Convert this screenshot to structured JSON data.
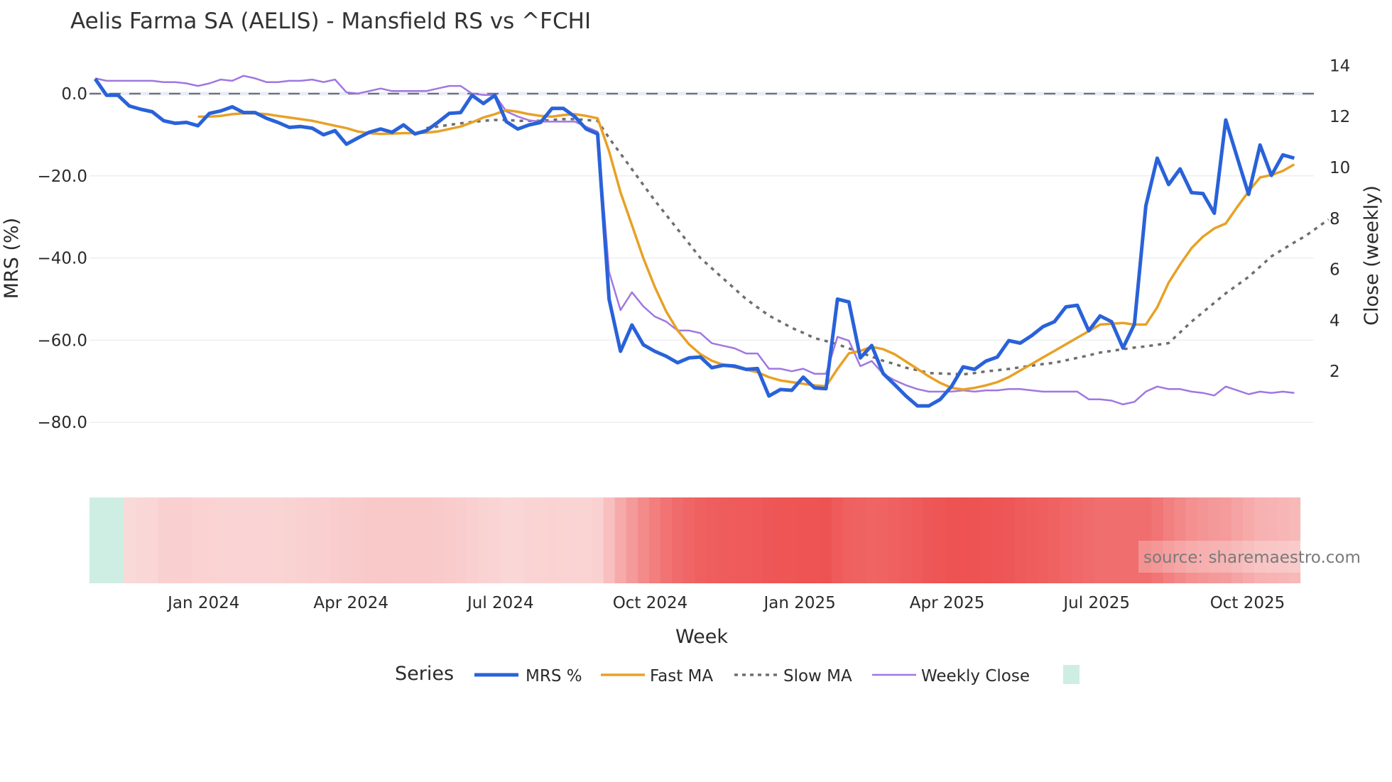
{
  "title": "Aelis Farma SA (AELIS) - Mansfield RS vs ^FCHI",
  "watermark": "source: sharemaestro.com",
  "colors": {
    "mrs": "#2962d9",
    "fast_ma": "#e8a125",
    "slow_ma": "#6e6e6e",
    "weekly_close": "#a077e0",
    "zero_line": "#707070",
    "heat_positive": "#cfeee3",
    "heat_negative_light": "#fbe3e3",
    "heat_negative_dark": "#ee5252"
  },
  "legend": {
    "title": "Series",
    "items": [
      {
        "label": "MRS %",
        "key": "mrs",
        "style": "solid-thick"
      },
      {
        "label": "Fast MA",
        "key": "fast_ma",
        "style": "solid"
      },
      {
        "label": "Slow MA",
        "key": "slow_ma",
        "style": "dotted"
      },
      {
        "label": "Weekly Close",
        "key": "weekly_close",
        "style": "solid-thin"
      },
      {
        "label": "",
        "key": "heat_positive",
        "style": "swatch"
      }
    ]
  },
  "chart_data": {
    "type": "line",
    "title": "Aelis Farma SA (AELIS) - Mansfield RS vs ^FCHI",
    "xlabel": "Week",
    "ylabel": "MRS (%)",
    "y2label": "Close (weekly)",
    "ylim": [
      -90,
      8
    ],
    "y2lim": [
      0,
      14.6
    ],
    "yticks": [
      0,
      -20,
      -40,
      -60,
      -80
    ],
    "ytick_labels": [
      "0.0",
      "−20.0",
      "−40.0",
      "−60.0",
      "−80.0"
    ],
    "y2ticks": [
      14,
      12,
      10,
      8,
      6,
      4,
      2
    ],
    "xtick_labels": [
      "Jan 2024",
      "Apr 2024",
      "Jul 2024",
      "Oct 2024",
      "Jan 2025",
      "Apr 2025",
      "Jul 2025",
      "Oct 2025"
    ],
    "xtick_week_index": [
      9.5,
      22.4,
      35.5,
      48.6,
      61.7,
      74.6,
      87.7,
      100.9
    ],
    "first_week": "2023-10-23",
    "weeks": 106,
    "grid": true,
    "legend_position": "bottom",
    "reference_line": {
      "y": 0,
      "style": "dashed"
    },
    "series": [
      {
        "name": "MRS %",
        "axis": "left",
        "start_index": 0,
        "values": [
          3.6,
          -0.4,
          -0.4,
          -3,
          -3.8,
          -4.4,
          -6.6,
          -7.2,
          -7,
          -7.8,
          -4.8,
          -4.2,
          -3.2,
          -4.6,
          -4.6,
          -6,
          -7,
          -8.2,
          -8,
          -8.4,
          -10,
          -9,
          -12.3,
          -10.8,
          -9.4,
          -8.6,
          -9.4,
          -7.6,
          -9.8,
          -9,
          -7,
          -4.8,
          -4.6,
          -0.4,
          -2.4,
          -0.4,
          -6.8,
          -8.6,
          -7.6,
          -7,
          -3.6,
          -3.6,
          -5.6,
          -8.6,
          -9.8,
          -50,
          -62.7,
          -56.3,
          -61.1,
          -62.7,
          -63.9,
          -65.5,
          -64.3,
          -64.1,
          -66.7,
          -66.1,
          -66.3,
          -67.1,
          -66.9,
          -73.6,
          -72,
          -72.2,
          -69,
          -71.6,
          -71.8,
          -50,
          -50.7,
          -64.3,
          -61.3,
          -68.1,
          -70.8,
          -73.6,
          -76,
          -76,
          -74.4,
          -71.2,
          -66.5,
          -67.1,
          -65.1,
          -64.1,
          -60.1,
          -60.7,
          -58.9,
          -56.7,
          -55.5,
          -51.9,
          -51.5,
          -57.7,
          -54.1,
          -55.5,
          -61.9,
          -56.1,
          -27.3,
          -15.7,
          -22.1,
          -18.3,
          -24.1,
          -24.3,
          -29.1,
          -6.4,
          -15.5,
          -24.5,
          -12.5,
          -19.9,
          -14.9,
          -15.7
        ]
      },
      {
        "name": "Fast MA",
        "axis": "left",
        "start_index": 9,
        "values": [
          -5.6,
          -5.6,
          -5.4,
          -5.0,
          -4.8,
          -4.8,
          -5.0,
          -5.4,
          -5.8,
          -6.2,
          -6.6,
          -7.2,
          -7.8,
          -8.4,
          -9.2,
          -9.6,
          -9.8,
          -9.7,
          -9.6,
          -9.6,
          -9.5,
          -9.2,
          -8.6,
          -8.0,
          -7.0,
          -5.8,
          -5.0,
          -4.0,
          -4.4,
          -5.0,
          -5.4,
          -5.6,
          -5.2,
          -5.0,
          -5.4,
          -6.0,
          -14,
          -24,
          -32,
          -40,
          -47,
          -53,
          -57.6,
          -61,
          -63.4,
          -65,
          -66,
          -66.6,
          -67.2,
          -67.8,
          -69,
          -69.8,
          -70.2,
          -70.6,
          -71,
          -71.2,
          -67,
          -63.2,
          -62.6,
          -61.6,
          -62.2,
          -63.4,
          -65.2,
          -67,
          -68.8,
          -70.4,
          -71.6,
          -72,
          -71.6,
          -71,
          -70.2,
          -69,
          -67.4,
          -65.8,
          -64.2,
          -62.6,
          -61,
          -59.4,
          -57.8,
          -56.2,
          -56,
          -55.8,
          -56.2,
          -56.2,
          -52,
          -46,
          -41.6,
          -37.6,
          -34.8,
          -32.8,
          -31.6,
          -27.6,
          -23.8,
          -20.4,
          -19.8,
          -18.8,
          -17.2
        ]
      },
      {
        "name": "Slow MA",
        "axis": "left",
        "start_index": 29,
        "values": [
          -8.4,
          -8.0,
          -7.6,
          -7.2,
          -6.9,
          -6.6,
          -6.4,
          -6.4,
          -6.6,
          -6.6,
          -6.6,
          -6.4,
          -6.2,
          -6.2,
          -6.4,
          -6.6,
          -10.8,
          -14.6,
          -18.4,
          -22.2,
          -26,
          -29.5,
          -33,
          -36.5,
          -40,
          -42.5,
          -45,
          -47.5,
          -50,
          -52,
          -54,
          -55.5,
          -57,
          -58.2,
          -59.5,
          -60.2,
          -61,
          -62,
          -63,
          -64,
          -65,
          -65.8,
          -66.7,
          -67.3,
          -68,
          -68.1,
          -68.2,
          -68.3,
          -68,
          -67.6,
          -67.3,
          -67,
          -66.6,
          -66.2,
          -65.8,
          -65.5,
          -64.9,
          -64.3,
          -63.7,
          -63,
          -62.6,
          -62.2,
          -61.8,
          -61.5,
          -61.1,
          -60.7,
          -58.1,
          -55.5,
          -53.2,
          -50.9,
          -48.6,
          -46.6,
          -44.6,
          -42.1,
          -39.6,
          -37.9,
          -36.2,
          -34.6,
          -32.6,
          -30.6
        ]
      },
      {
        "name": "Weekly Close",
        "axis": "right",
        "start_index": 0,
        "values": [
          13.5,
          13.4,
          13.4,
          13.4,
          13.4,
          13.4,
          13.35,
          13.35,
          13.3,
          13.2,
          13.3,
          13.45,
          13.4,
          13.6,
          13.5,
          13.35,
          13.35,
          13.4,
          13.4,
          13.45,
          13.35,
          13.45,
          12.95,
          12.9,
          13.0,
          13.1,
          13.0,
          13.0,
          13.0,
          13.0,
          13.1,
          13.2,
          13.2,
          12.9,
          12.85,
          12.85,
          12.2,
          12.0,
          11.85,
          11.8,
          11.8,
          11.8,
          11.8,
          11.6,
          11.4,
          5.9,
          4.4,
          5.1,
          4.55,
          4.15,
          3.95,
          3.6,
          3.6,
          3.5,
          3.1,
          3.0,
          2.9,
          2.7,
          2.7,
          2.1,
          2.1,
          2.0,
          2.1,
          1.9,
          1.9,
          3.35,
          3.2,
          2.2,
          2.4,
          1.9,
          1.65,
          1.45,
          1.3,
          1.2,
          1.2,
          1.2,
          1.25,
          1.2,
          1.25,
          1.25,
          1.3,
          1.3,
          1.25,
          1.2,
          1.2,
          1.2,
          1.2,
          0.9,
          0.9,
          0.85,
          0.7,
          0.8,
          1.2,
          1.4,
          1.3,
          1.3,
          1.2,
          1.15,
          1.05,
          1.4,
          1.25,
          1.1,
          1.2,
          1.15,
          1.2,
          1.15
        ]
      }
    ],
    "heatmap": {
      "basis": "MRS smoothed",
      "positive_color": "#cfeee3",
      "negative_scale": [
        "#fbe3e3",
        "#ee5252"
      ],
      "range": [
        0,
        -72
      ]
    }
  }
}
